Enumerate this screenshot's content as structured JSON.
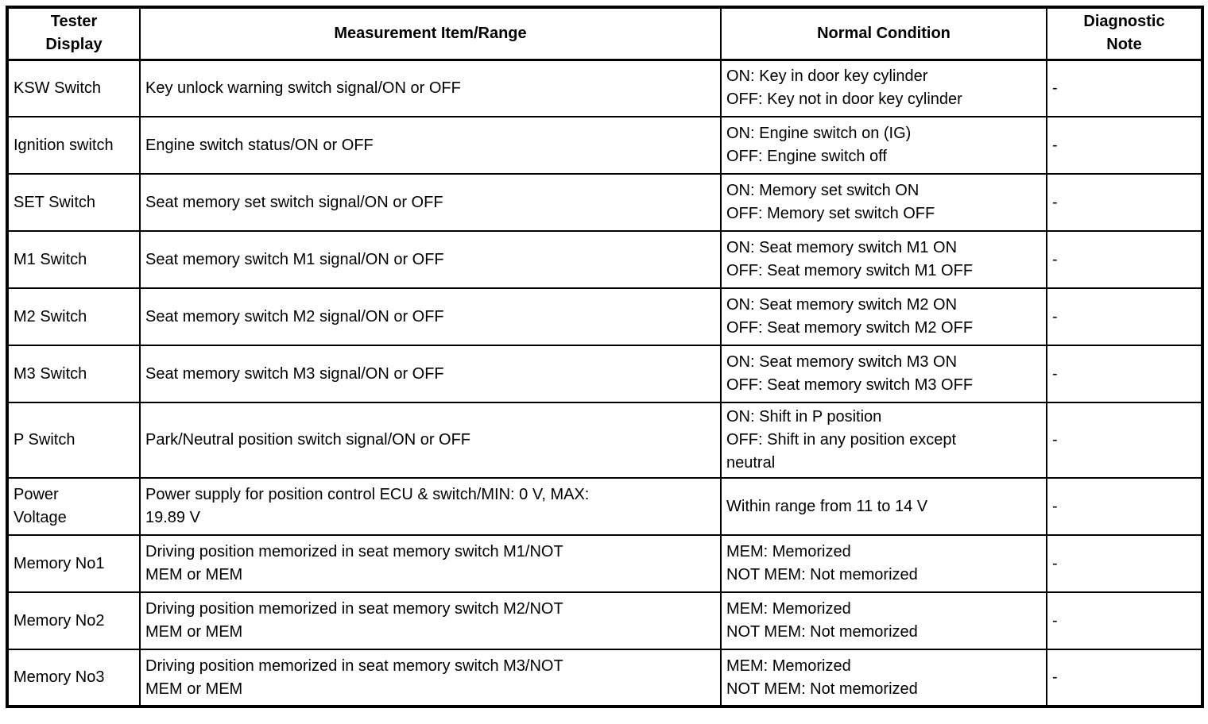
{
  "table": {
    "headers": [
      "Tester\nDisplay",
      "Measurement Item/Range",
      "Normal Condition",
      "Diagnostic\nNote"
    ],
    "rows": [
      {
        "tester_display": "KSW Switch",
        "measurement_item_range": "Key unlock warning switch signal/ON or OFF",
        "normal_condition": "ON: Key in door key cylinder\nOFF: Key not in door key cylinder",
        "diagnostic_note": "-"
      },
      {
        "tester_display": "Ignition switch",
        "measurement_item_range": "Engine switch status/ON or OFF",
        "normal_condition": "ON: Engine switch on (IG)\nOFF: Engine switch off",
        "diagnostic_note": "-"
      },
      {
        "tester_display": "SET Switch",
        "measurement_item_range": "Seat memory set switch signal/ON or OFF",
        "normal_condition": "ON: Memory set switch ON\nOFF: Memory set switch OFF",
        "diagnostic_note": "-"
      },
      {
        "tester_display": "M1 Switch",
        "measurement_item_range": "Seat memory switch M1 signal/ON or OFF",
        "normal_condition": "ON: Seat memory switch M1 ON\nOFF: Seat memory switch M1 OFF",
        "diagnostic_note": "-"
      },
      {
        "tester_display": "M2 Switch",
        "measurement_item_range": "Seat memory switch M2 signal/ON or OFF",
        "normal_condition": "ON: Seat memory switch M2 ON\nOFF: Seat memory switch M2 OFF",
        "diagnostic_note": "-"
      },
      {
        "tester_display": "M3 Switch",
        "measurement_item_range": "Seat memory switch M3 signal/ON or OFF",
        "normal_condition": "ON: Seat memory switch M3 ON\nOFF: Seat memory switch M3 OFF",
        "diagnostic_note": "-"
      },
      {
        "tester_display": "P Switch",
        "measurement_item_range": "Park/Neutral position switch signal/ON or OFF",
        "normal_condition": "ON: Shift in P position\nOFF: Shift in any position except\nneutral",
        "diagnostic_note": "-"
      },
      {
        "tester_display": "Power\nVoltage",
        "measurement_item_range": "Power supply for position control ECU & switch/MIN: 0 V, MAX:\n19.89 V",
        "normal_condition": "Within range from 11 to 14 V",
        "diagnostic_note": "-"
      },
      {
        "tester_display": "Memory No1",
        "measurement_item_range": "Driving position memorized in seat memory switch M1/NOT\nMEM or MEM",
        "normal_condition": "MEM: Memorized\nNOT MEM: Not memorized",
        "diagnostic_note": "-"
      },
      {
        "tester_display": "Memory No2",
        "measurement_item_range": "Driving position memorized in seat memory switch M2/NOT\nMEM or MEM",
        "normal_condition": "MEM: Memorized\nNOT MEM: Not memorized",
        "diagnostic_note": "-"
      },
      {
        "tester_display": "Memory No3",
        "measurement_item_range": "Driving position memorized in seat memory switch M3/NOT\nMEM or MEM",
        "normal_condition": "MEM: Memorized\nNOT MEM: Not memorized",
        "diagnostic_note": "-"
      }
    ]
  }
}
